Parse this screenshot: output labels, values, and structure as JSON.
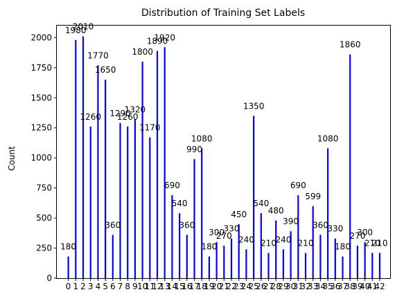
{
  "chart_data": {
    "type": "bar",
    "title": "Distribution of Training Set Labels",
    "xlabel": "",
    "ylabel": "Count",
    "ylim": [
      0,
      2100
    ],
    "yticks": [
      0,
      250,
      500,
      750,
      1000,
      1250,
      1500,
      1750,
      2000
    ],
    "grid": false,
    "legend": "none",
    "categories": [
      "0",
      "1",
      "2",
      "3",
      "4",
      "5",
      "6",
      "7",
      "8",
      "9",
      "10",
      "11",
      "12",
      "13",
      "14",
      "15",
      "16",
      "17",
      "18",
      "19",
      "20",
      "21",
      "22",
      "23",
      "24",
      "25",
      "26",
      "27",
      "28",
      "29",
      "30",
      "31",
      "32",
      "33",
      "34",
      "35",
      "36",
      "37",
      "38",
      "39",
      "40",
      "41",
      "42"
    ],
    "values": [
      180,
      1980,
      2010,
      1260,
      1770,
      1650,
      360,
      1290,
      1260,
      1320,
      1800,
      1170,
      1890,
      1920,
      690,
      540,
      360,
      990,
      1080,
      180,
      300,
      270,
      330,
      450,
      240,
      1350,
      540,
      210,
      480,
      240,
      390,
      690,
      210,
      599,
      360,
      1080,
      330,
      180,
      1860,
      270,
      300,
      210,
      210
    ],
    "bar_color": "#0000ff"
  }
}
